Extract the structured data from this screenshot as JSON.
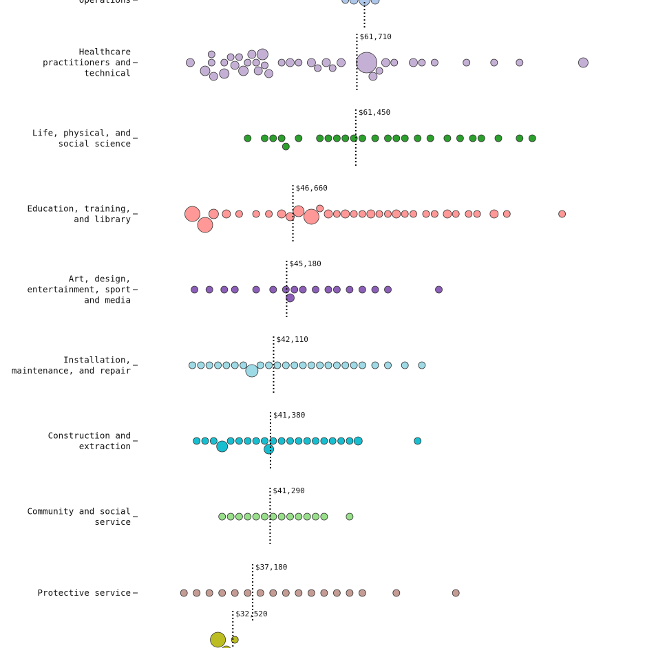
{
  "chart_data": {
    "type": "scatter",
    "subtype": "beeswarm",
    "x_unit": "USD",
    "xlim": [
      20000,
      260000
    ],
    "categories": [
      {
        "label": "operations",
        "median": 63500,
        "median_label": "",
        "color": "#aec7e8",
        "points": [
          [
            59000,
            5
          ],
          [
            61000,
            6
          ],
          [
            63500,
            8
          ],
          [
            66000,
            6
          ]
        ]
      },
      {
        "label": "Healthcare practitioners and technical",
        "median": 61710,
        "median_label": "$61,710",
        "color": "#c5b0d5",
        "points": [
          [
            22500,
            6
          ],
          [
            27500,
            5
          ],
          [
            26000,
            7
          ],
          [
            27500,
            5
          ],
          [
            28000,
            6
          ],
          [
            30500,
            5
          ],
          [
            30500,
            7
          ],
          [
            32000,
            5
          ],
          [
            33000,
            6
          ],
          [
            34000,
            5
          ],
          [
            35000,
            7
          ],
          [
            36000,
            5
          ],
          [
            37000,
            6
          ],
          [
            38000,
            5
          ],
          [
            38500,
            6
          ],
          [
            39500,
            8
          ],
          [
            40000,
            5
          ],
          [
            41000,
            6
          ],
          [
            44000,
            5
          ],
          [
            46000,
            6
          ],
          [
            48000,
            5
          ],
          [
            51000,
            6
          ],
          [
            52500,
            5
          ],
          [
            54500,
            6
          ],
          [
            56000,
            5
          ],
          [
            58000,
            6
          ],
          [
            64000,
            15
          ],
          [
            65500,
            6
          ],
          [
            67000,
            5
          ],
          [
            68500,
            6
          ],
          [
            70500,
            5
          ],
          [
            75000,
            6
          ],
          [
            77000,
            5
          ],
          [
            80000,
            5
          ],
          [
            87500,
            5
          ],
          [
            94000,
            5
          ],
          [
            100000,
            5
          ],
          [
            115000,
            7
          ],
          [
            146000,
            5
          ],
          [
            150000,
            5
          ],
          [
            159000,
            5
          ],
          [
            165000,
            5
          ],
          [
            178000,
            6
          ],
          [
            181000,
            8
          ],
          [
            183000,
            5
          ]
        ]
      },
      {
        "label": "Life, physical, and social science",
        "median": 61450,
        "median_label": "$61,450",
        "color": "#2ca02c",
        "points": [
          [
            36000,
            5
          ],
          [
            40000,
            5
          ],
          [
            42000,
            5
          ],
          [
            44000,
            5
          ],
          [
            45000,
            5
          ],
          [
            48000,
            5
          ],
          [
            53000,
            5
          ],
          [
            55000,
            5
          ],
          [
            57000,
            5
          ],
          [
            59000,
            5
          ],
          [
            61000,
            5
          ],
          [
            63000,
            5
          ],
          [
            66000,
            5
          ],
          [
            69000,
            5
          ],
          [
            71000,
            5
          ],
          [
            73000,
            5
          ],
          [
            76000,
            5
          ],
          [
            79000,
            5
          ],
          [
            83000,
            5
          ],
          [
            86000,
            5
          ],
          [
            89000,
            5
          ],
          [
            91000,
            5
          ],
          [
            95000,
            5
          ],
          [
            100000,
            5
          ],
          [
            103000,
            5
          ]
        ]
      },
      {
        "label": "Education, training, and library",
        "median": 46660,
        "median_label": "$46,660",
        "color": "#ff9896",
        "points": [
          [
            23000,
            11
          ],
          [
            26000,
            11
          ],
          [
            28000,
            7
          ],
          [
            31000,
            6
          ],
          [
            34000,
            5
          ],
          [
            38000,
            5
          ],
          [
            41000,
            5
          ],
          [
            44000,
            6
          ],
          [
            46000,
            6
          ],
          [
            48000,
            8
          ],
          [
            51000,
            11
          ],
          [
            53000,
            5
          ],
          [
            55000,
            6
          ],
          [
            57000,
            5
          ],
          [
            59000,
            6
          ],
          [
            61000,
            5
          ],
          [
            63000,
            5
          ],
          [
            65000,
            6
          ],
          [
            67000,
            5
          ],
          [
            69000,
            5
          ],
          [
            71000,
            6
          ],
          [
            73000,
            5
          ],
          [
            75000,
            5
          ],
          [
            78000,
            5
          ],
          [
            80000,
            5
          ],
          [
            83000,
            6
          ],
          [
            85000,
            5
          ],
          [
            88000,
            5
          ],
          [
            90000,
            5
          ],
          [
            94000,
            6
          ],
          [
            97000,
            5
          ],
          [
            110000,
            5
          ]
        ]
      },
      {
        "label": "Art, design, entertainment, sport and media",
        "median": 45180,
        "median_label": "$45,180",
        "color": "#8c5fb8",
        "points": [
          [
            23500,
            5
          ],
          [
            27000,
            5
          ],
          [
            30500,
            5
          ],
          [
            33000,
            5
          ],
          [
            38000,
            5
          ],
          [
            42000,
            5
          ],
          [
            45000,
            5
          ],
          [
            46000,
            6
          ],
          [
            47000,
            5
          ],
          [
            49000,
            5
          ],
          [
            52000,
            5
          ],
          [
            55000,
            5
          ],
          [
            57000,
            5
          ],
          [
            60000,
            5
          ],
          [
            63000,
            5
          ],
          [
            66000,
            5
          ],
          [
            69000,
            5
          ],
          [
            81000,
            5
          ]
        ]
      },
      {
        "label": "Installation, maintenance, and repair",
        "median": 42110,
        "median_label": "$42,110",
        "color": "#9edae5",
        "points": [
          [
            23000,
            5
          ],
          [
            25000,
            5
          ],
          [
            27000,
            5
          ],
          [
            29000,
            5
          ],
          [
            31000,
            5
          ],
          [
            33000,
            5
          ],
          [
            35000,
            5
          ],
          [
            37000,
            9
          ],
          [
            39000,
            5
          ],
          [
            41000,
            5
          ],
          [
            43000,
            5
          ],
          [
            45000,
            5
          ],
          [
            47000,
            5
          ],
          [
            49000,
            5
          ],
          [
            51000,
            5
          ],
          [
            53000,
            5
          ],
          [
            55000,
            5
          ],
          [
            57000,
            5
          ],
          [
            59000,
            5
          ],
          [
            61000,
            5
          ],
          [
            63000,
            5
          ],
          [
            66000,
            5
          ],
          [
            69000,
            5
          ],
          [
            73000,
            5
          ],
          [
            77000,
            5
          ]
        ]
      },
      {
        "label": "Construction and extraction",
        "median": 41380,
        "median_label": "$41,380",
        "color": "#17becf",
        "points": [
          [
            24000,
            5
          ],
          [
            26000,
            5
          ],
          [
            28000,
            5
          ],
          [
            30000,
            8
          ],
          [
            32000,
            5
          ],
          [
            34000,
            5
          ],
          [
            36000,
            5
          ],
          [
            38000,
            5
          ],
          [
            40000,
            5
          ],
          [
            41000,
            7
          ],
          [
            42000,
            5
          ],
          [
            44000,
            5
          ],
          [
            46000,
            5
          ],
          [
            48000,
            5
          ],
          [
            50000,
            5
          ],
          [
            52000,
            5
          ],
          [
            54000,
            5
          ],
          [
            56000,
            5
          ],
          [
            58000,
            5
          ],
          [
            60000,
            5
          ],
          [
            62000,
            6
          ],
          [
            76000,
            5
          ]
        ]
      },
      {
        "label": "Community and social service",
        "median": 41290,
        "median_label": "$41,290",
        "color": "#98df8a",
        "points": [
          [
            30000,
            5
          ],
          [
            32000,
            5
          ],
          [
            34000,
            5
          ],
          [
            36000,
            5
          ],
          [
            38000,
            5
          ],
          [
            40000,
            5
          ],
          [
            42000,
            5
          ],
          [
            44000,
            5
          ],
          [
            46000,
            5
          ],
          [
            48000,
            5
          ],
          [
            50000,
            5
          ],
          [
            52000,
            5
          ],
          [
            54000,
            5
          ],
          [
            60000,
            5
          ]
        ]
      },
      {
        "label": "Protective service",
        "median": 37180,
        "median_label": "$37,180",
        "color": "#c49c94",
        "points": [
          [
            21000,
            5
          ],
          [
            24000,
            5
          ],
          [
            27000,
            5
          ],
          [
            30000,
            5
          ],
          [
            33000,
            5
          ],
          [
            36000,
            5
          ],
          [
            39000,
            5
          ],
          [
            42000,
            5
          ],
          [
            45000,
            5
          ],
          [
            48000,
            5
          ],
          [
            51000,
            5
          ],
          [
            54000,
            5
          ],
          [
            57000,
            5
          ],
          [
            60000,
            5
          ],
          [
            63000,
            5
          ],
          [
            71000,
            5
          ],
          [
            85000,
            5
          ]
        ]
      },
      {
        "label": "",
        "median": 32520,
        "median_label": "$32,520",
        "color": "#bcbd22",
        "points": [
          [
            29000,
            11
          ],
          [
            31000,
            7
          ],
          [
            33000,
            5
          ]
        ]
      }
    ]
  }
}
